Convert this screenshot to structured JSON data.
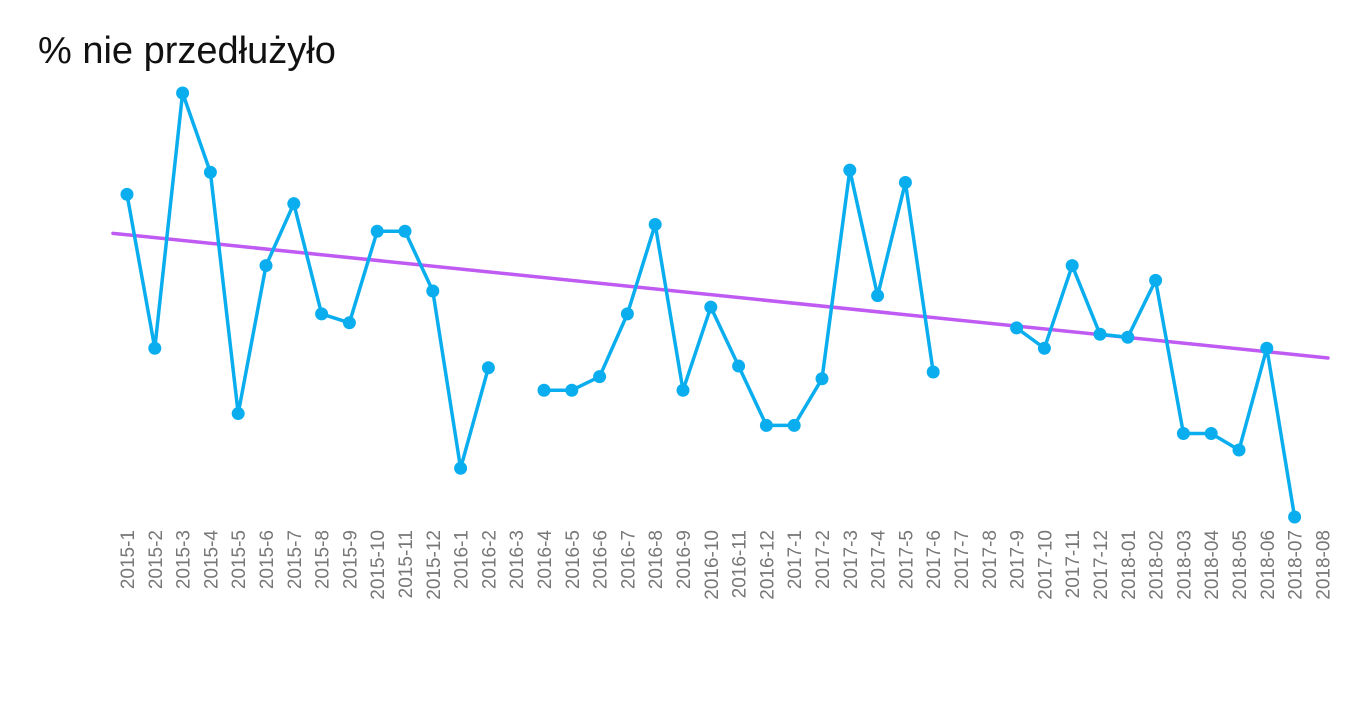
{
  "chart_data": {
    "type": "line",
    "title": "% nie przedłużyło",
    "xlabel": "",
    "ylabel": "",
    "ylim": [
      0,
      100
    ],
    "grid": false,
    "legend": "none",
    "categories": [
      "2015-1",
      "2015-2",
      "2015-3",
      "2015-4",
      "2015-5",
      "2015-6",
      "2015-7",
      "2015-8",
      "2015-9",
      "2015-10",
      "2015-11",
      "2015-12",
      "2016-1",
      "2016-2",
      "2016-3",
      "2016-4",
      "2016-5",
      "2016-6",
      "2016-7",
      "2016-8",
      "2016-9",
      "2016-10",
      "2016-11",
      "2016-12",
      "2017-1",
      "2017-2",
      "2017-3",
      "2017-4",
      "2017-5",
      "2017-6",
      "2017-7",
      "2017-8",
      "2017-9",
      "2017-10",
      "2017-11",
      "2017-12",
      "2018-01",
      "2018-02",
      "2018-03",
      "2018-04",
      "2018-05",
      "2018-06",
      "2018-07",
      "2018-08"
    ],
    "series": [
      {
        "color": "#0aaeef",
        "values": [
          76.1,
          39.8,
          100,
          81.3,
          24.4,
          59.3,
          73.9,
          47.9,
          45.8,
          67.4,
          67.4,
          53.3,
          11.5,
          35.2,
          null,
          29.9,
          29.9,
          33.1,
          47.9,
          69,
          29.9,
          49.5,
          35.6,
          21.6,
          21.6,
          32.6,
          81.8,
          52.2,
          78.9,
          34.2,
          null,
          null,
          44.6,
          39.8,
          59.3,
          43.1,
          42.4,
          55.8,
          19.7,
          19.7,
          15.8,
          39.8,
          0,
          null
        ]
      }
    ],
    "trend_line": {
      "color": "#bf5af2",
      "start": 66.9,
      "end": 37.5
    }
  }
}
